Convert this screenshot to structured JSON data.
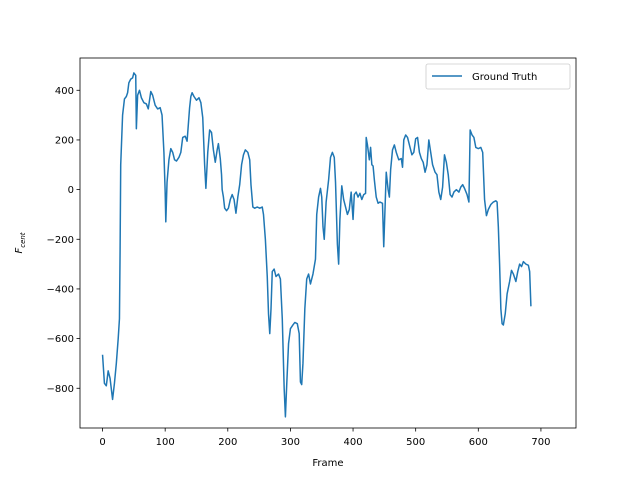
{
  "chart_data": {
    "type": "line",
    "title": "",
    "xlabel": "Frame",
    "ylabel_base": "F",
    "ylabel_sub": "cent",
    "xlim": [
      -36,
      756
    ],
    "ylim": [
      -960,
      530
    ],
    "xticks": [
      0,
      100,
      200,
      300,
      400,
      500,
      600,
      700
    ],
    "yticks": [
      -800,
      -600,
      -400,
      -200,
      0,
      200,
      400
    ],
    "grid": false,
    "legend": {
      "position": "top-right",
      "entries": [
        "Ground Truth"
      ]
    },
    "series": [
      {
        "name": "Ground Truth",
        "color": "#1f77b4",
        "points": [
          [
            0,
            -665
          ],
          [
            3,
            -780
          ],
          [
            6,
            -790
          ],
          [
            9,
            -730
          ],
          [
            12,
            -760
          ],
          [
            16,
            -845
          ],
          [
            19,
            -780
          ],
          [
            22,
            -700
          ],
          [
            25,
            -600
          ],
          [
            27,
            -520
          ],
          [
            28,
            -250
          ],
          [
            29,
            100
          ],
          [
            32,
            300
          ],
          [
            35,
            365
          ],
          [
            38,
            375
          ],
          [
            40,
            390
          ],
          [
            42,
            430
          ],
          [
            45,
            445
          ],
          [
            48,
            450
          ],
          [
            50,
            470
          ],
          [
            53,
            460
          ],
          [
            54,
            245
          ],
          [
            56,
            380
          ],
          [
            59,
            400
          ],
          [
            62,
            370
          ],
          [
            66,
            350
          ],
          [
            70,
            345
          ],
          [
            73,
            325
          ],
          [
            75,
            360
          ],
          [
            77,
            395
          ],
          [
            80,
            380
          ],
          [
            84,
            340
          ],
          [
            88,
            325
          ],
          [
            92,
            330
          ],
          [
            95,
            300
          ],
          [
            98,
            150
          ],
          [
            100,
            -10
          ],
          [
            101,
            -130
          ],
          [
            103,
            30
          ],
          [
            106,
            120
          ],
          [
            109,
            165
          ],
          [
            112,
            150
          ],
          [
            115,
            120
          ],
          [
            118,
            115
          ],
          [
            122,
            130
          ],
          [
            125,
            150
          ],
          [
            128,
            210
          ],
          [
            132,
            215
          ],
          [
            135,
            195
          ],
          [
            139,
            330
          ],
          [
            141,
            375
          ],
          [
            143,
            390
          ],
          [
            146,
            375
          ],
          [
            150,
            360
          ],
          [
            154,
            370
          ],
          [
            157,
            350
          ],
          [
            160,
            290
          ],
          [
            163,
            100
          ],
          [
            165,
            5
          ],
          [
            168,
            150
          ],
          [
            171,
            240
          ],
          [
            174,
            230
          ],
          [
            177,
            160
          ],
          [
            180,
            110
          ],
          [
            183,
            160
          ],
          [
            185,
            185
          ],
          [
            188,
            125
          ],
          [
            190,
            60
          ],
          [
            191,
            0
          ],
          [
            193,
            -30
          ],
          [
            195,
            -75
          ],
          [
            198,
            -85
          ],
          [
            201,
            -75
          ],
          [
            204,
            -40
          ],
          [
            207,
            -20
          ],
          [
            210,
            -40
          ],
          [
            213,
            -95
          ],
          [
            216,
            -30
          ],
          [
            219,
            20
          ],
          [
            222,
            100
          ],
          [
            225,
            140
          ],
          [
            228,
            160
          ],
          [
            232,
            150
          ],
          [
            235,
            120
          ],
          [
            237,
            20
          ],
          [
            240,
            -70
          ],
          [
            243,
            -75
          ],
          [
            247,
            -70
          ],
          [
            251,
            -75
          ],
          [
            255,
            -70
          ],
          [
            257,
            -100
          ],
          [
            260,
            -200
          ],
          [
            263,
            -350
          ],
          [
            265,
            -500
          ],
          [
            267,
            -580
          ],
          [
            269,
            -480
          ],
          [
            271,
            -330
          ],
          [
            274,
            -320
          ],
          [
            277,
            -350
          ],
          [
            281,
            -340
          ],
          [
            284,
            -360
          ],
          [
            287,
            -520
          ],
          [
            290,
            -800
          ],
          [
            292,
            -915
          ],
          [
            294,
            -790
          ],
          [
            297,
            -620
          ],
          [
            300,
            -560
          ],
          [
            304,
            -545
          ],
          [
            307,
            -535
          ],
          [
            311,
            -540
          ],
          [
            314,
            -580
          ],
          [
            316,
            -775
          ],
          [
            318,
            -785
          ],
          [
            320,
            -700
          ],
          [
            323,
            -480
          ],
          [
            326,
            -360
          ],
          [
            329,
            -340
          ],
          [
            332,
            -380
          ],
          [
            336,
            -340
          ],
          [
            340,
            -280
          ],
          [
            342,
            -100
          ],
          [
            345,
            -30
          ],
          [
            348,
            5
          ],
          [
            350,
            -30
          ],
          [
            352,
            -150
          ],
          [
            354,
            -200
          ],
          [
            357,
            -50
          ],
          [
            361,
            40
          ],
          [
            364,
            130
          ],
          [
            367,
            150
          ],
          [
            370,
            130
          ],
          [
            372,
            30
          ],
          [
            375,
            -220
          ],
          [
            377,
            -300
          ],
          [
            379,
            -120
          ],
          [
            382,
            15
          ],
          [
            385,
            -40
          ],
          [
            388,
            -70
          ],
          [
            391,
            -100
          ],
          [
            394,
            -80
          ],
          [
            397,
            -10
          ],
          [
            400,
            -120
          ],
          [
            402,
            -20
          ],
          [
            405,
            -10
          ],
          [
            408,
            -30
          ],
          [
            411,
            -15
          ],
          [
            414,
            -40
          ],
          [
            417,
            -20
          ],
          [
            420,
            -15
          ],
          [
            421,
            210
          ],
          [
            423,
            180
          ],
          [
            426,
            120
          ],
          [
            428,
            170
          ],
          [
            430,
            100
          ],
          [
            432,
            95
          ],
          [
            434,
            40
          ],
          [
            437,
            -30
          ],
          [
            440,
            -55
          ],
          [
            443,
            -50
          ],
          [
            447,
            -55
          ],
          [
            449,
            -230
          ],
          [
            451,
            -80
          ],
          [
            453,
            70
          ],
          [
            456,
            0
          ],
          [
            458,
            -30
          ],
          [
            460,
            80
          ],
          [
            463,
            160
          ],
          [
            466,
            180
          ],
          [
            469,
            150
          ],
          [
            473,
            120
          ],
          [
            477,
            125
          ],
          [
            479,
            90
          ],
          [
            481,
            200
          ],
          [
            484,
            220
          ],
          [
            487,
            210
          ],
          [
            491,
            170
          ],
          [
            494,
            140
          ],
          [
            497,
            150
          ],
          [
            500,
            205
          ],
          [
            503,
            210
          ],
          [
            506,
            150
          ],
          [
            509,
            125
          ],
          [
            512,
            110
          ],
          [
            515,
            70
          ],
          [
            518,
            100
          ],
          [
            521,
            200
          ],
          [
            524,
            150
          ],
          [
            527,
            100
          ],
          [
            531,
            70
          ],
          [
            534,
            60
          ],
          [
            537,
            -10
          ],
          [
            540,
            -40
          ],
          [
            543,
            10
          ],
          [
            546,
            140
          ],
          [
            549,
            110
          ],
          [
            552,
            60
          ],
          [
            555,
            -20
          ],
          [
            558,
            -30
          ],
          [
            561,
            -10
          ],
          [
            565,
            0
          ],
          [
            569,
            -10
          ],
          [
            572,
            10
          ],
          [
            575,
            20
          ],
          [
            578,
            5
          ],
          [
            582,
            -20
          ],
          [
            585,
            -50
          ],
          [
            587,
            240
          ],
          [
            590,
            220
          ],
          [
            593,
            210
          ],
          [
            596,
            170
          ],
          [
            600,
            165
          ],
          [
            604,
            170
          ],
          [
            607,
            150
          ],
          [
            610,
            -40
          ],
          [
            613,
            -105
          ],
          [
            616,
            -80
          ],
          [
            620,
            -60
          ],
          [
            624,
            -50
          ],
          [
            628,
            -45
          ],
          [
            630,
            -50
          ],
          [
            632,
            -150
          ],
          [
            634,
            -300
          ],
          [
            636,
            -480
          ],
          [
            638,
            -540
          ],
          [
            640,
            -545
          ],
          [
            643,
            -500
          ],
          [
            646,
            -420
          ],
          [
            650,
            -370
          ],
          [
            653,
            -325
          ],
          [
            656,
            -340
          ],
          [
            660,
            -370
          ],
          [
            663,
            -330
          ],
          [
            666,
            -300
          ],
          [
            669,
            -310
          ],
          [
            672,
            -290
          ],
          [
            676,
            -300
          ],
          [
            680,
            -305
          ],
          [
            682,
            -330
          ],
          [
            684,
            -470
          ]
        ]
      }
    ]
  }
}
